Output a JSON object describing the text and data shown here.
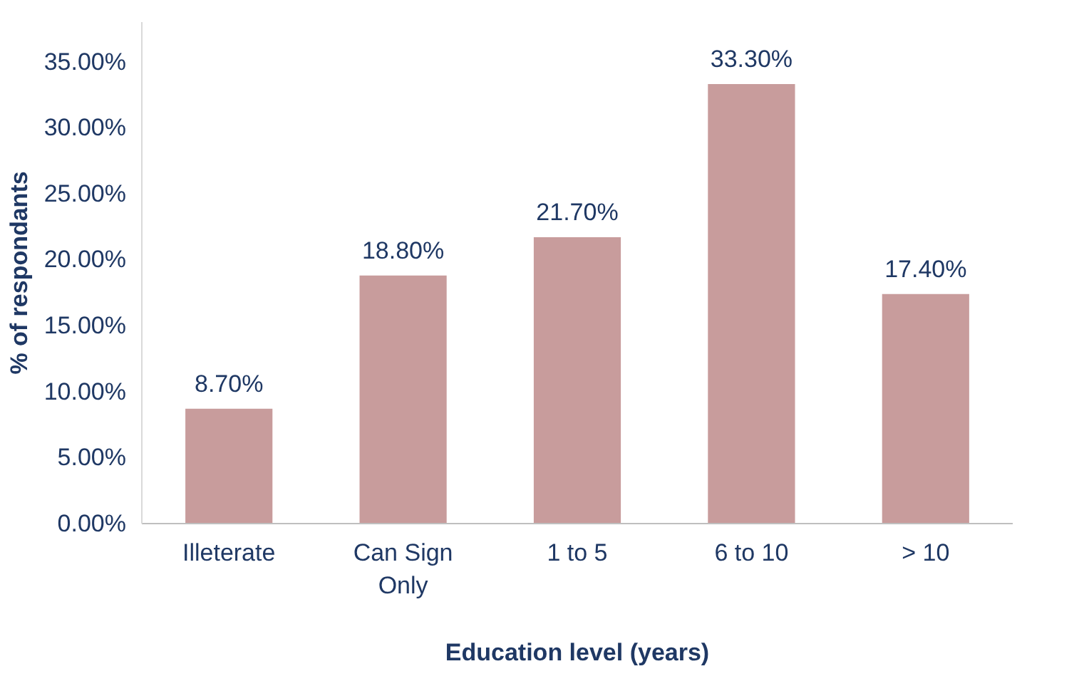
{
  "chart_data": {
    "type": "bar",
    "xlabel": "Education level (years)",
    "ylabel": "% of respondants",
    "categories": [
      "Illeterate",
      "Can Sign Only",
      "1 to 5",
      "6 to 10",
      "> 10"
    ],
    "values": [
      8.7,
      18.8,
      21.7,
      33.3,
      17.4
    ],
    "value_labels": [
      "8.70%",
      "18.80%",
      "21.70%",
      "33.30%",
      "17.40%"
    ],
    "color": "#c89c9c",
    "ylim": [
      0,
      38
    ],
    "yticks": [
      {
        "value": 0,
        "label": "0.00%"
      },
      {
        "value": 5,
        "label": "5.00%"
      },
      {
        "value": 10,
        "label": "10.00%"
      },
      {
        "value": 15,
        "label": "15.00%"
      },
      {
        "value": 20,
        "label": "20.00%"
      },
      {
        "value": 25,
        "label": "25.00%"
      },
      {
        "value": 30,
        "label": "30.00%"
      },
      {
        "value": 35,
        "label": "35.00%"
      }
    ],
    "grid": false
  }
}
